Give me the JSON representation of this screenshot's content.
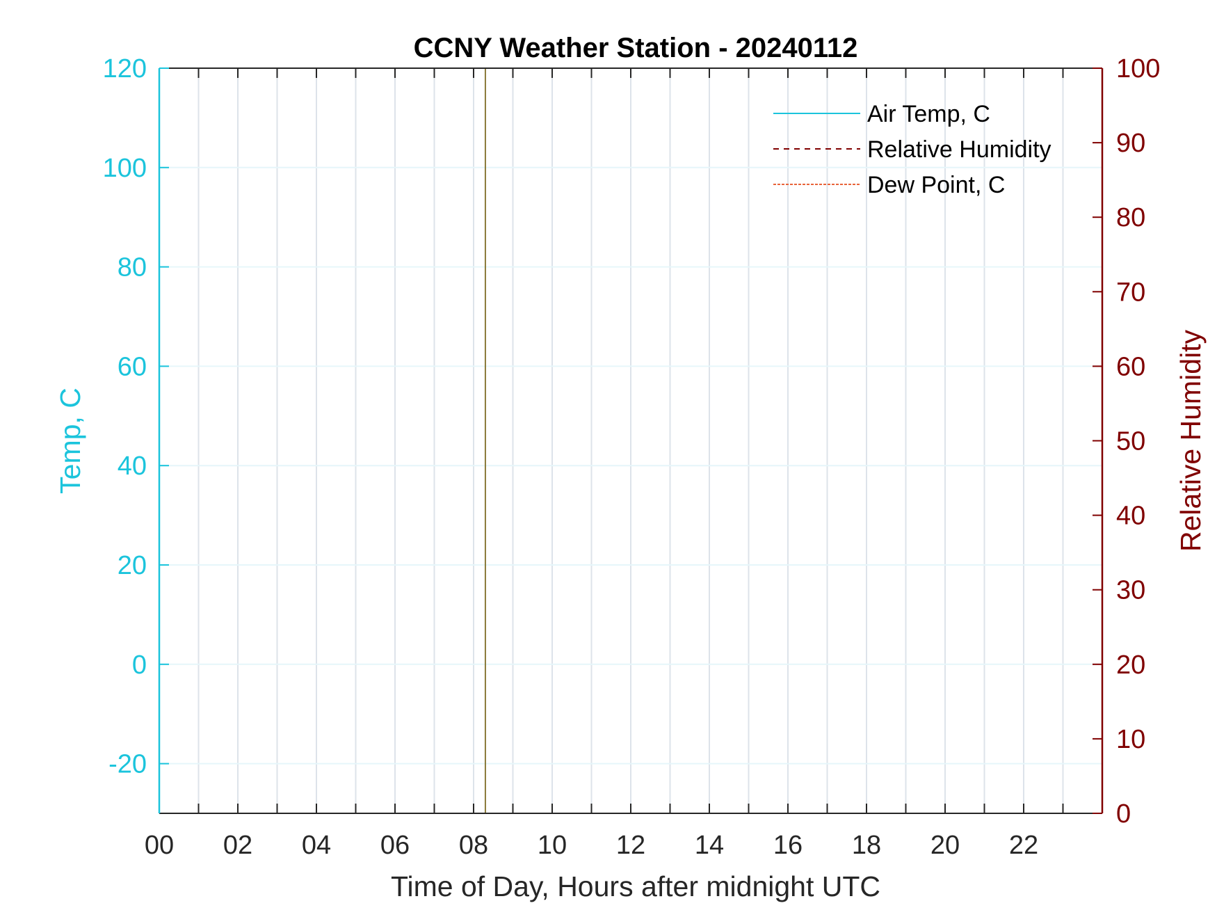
{
  "chart_data": {
    "type": "line",
    "title": "CCNY Weather Station - 20240112",
    "xlabel": "Time of Day, Hours after midnight UTC",
    "ylabel_left": "Temp, C",
    "ylabel_right": "Relative Humidity",
    "xlim": [
      0,
      24
    ],
    "ylim_left": [
      -30,
      120
    ],
    "ylim_right": [
      0,
      100
    ],
    "x_ticks": [
      0,
      2,
      4,
      6,
      8,
      10,
      12,
      14,
      16,
      18,
      20,
      22
    ],
    "x_tick_labels": [
      "00",
      "02",
      "04",
      "06",
      "08",
      "10",
      "12",
      "14",
      "16",
      "18",
      "20",
      "22"
    ],
    "x_minor_ticks": [
      1,
      3,
      5,
      7,
      9,
      11,
      13,
      15,
      17,
      19,
      21,
      23
    ],
    "y_left_ticks": [
      -20,
      0,
      20,
      40,
      60,
      80,
      100,
      120
    ],
    "y_left_tick_labels": [
      "-20",
      "0",
      "20",
      "40",
      "60",
      "80",
      "100",
      "120"
    ],
    "y_right_ticks": [
      0,
      10,
      20,
      30,
      40,
      50,
      60,
      70,
      80,
      90,
      100
    ],
    "y_right_tick_labels": [
      "0",
      "10",
      "20",
      "30",
      "40",
      "50",
      "60",
      "70",
      "80",
      "90",
      "100"
    ],
    "grid": true,
    "legend_position": "top-right",
    "colors": {
      "temp_axis": "#1bc4dc",
      "rh_axis": "#800000",
      "dew_point": "#e8643a",
      "vertical_marker": "#8a7a3a",
      "grid": "#dde3ea",
      "axis_dark": "#262626"
    },
    "series": [
      {
        "name": "Air Temp, C",
        "axis": "left",
        "style": "solid",
        "values": []
      },
      {
        "name": "Relative Humidity",
        "axis": "right",
        "style": "dashed",
        "values": []
      },
      {
        "name": "Dew Point, C",
        "axis": "left",
        "style": "dotted",
        "values": []
      }
    ],
    "annotations": {
      "vertical_line_x": 8.3
    }
  }
}
